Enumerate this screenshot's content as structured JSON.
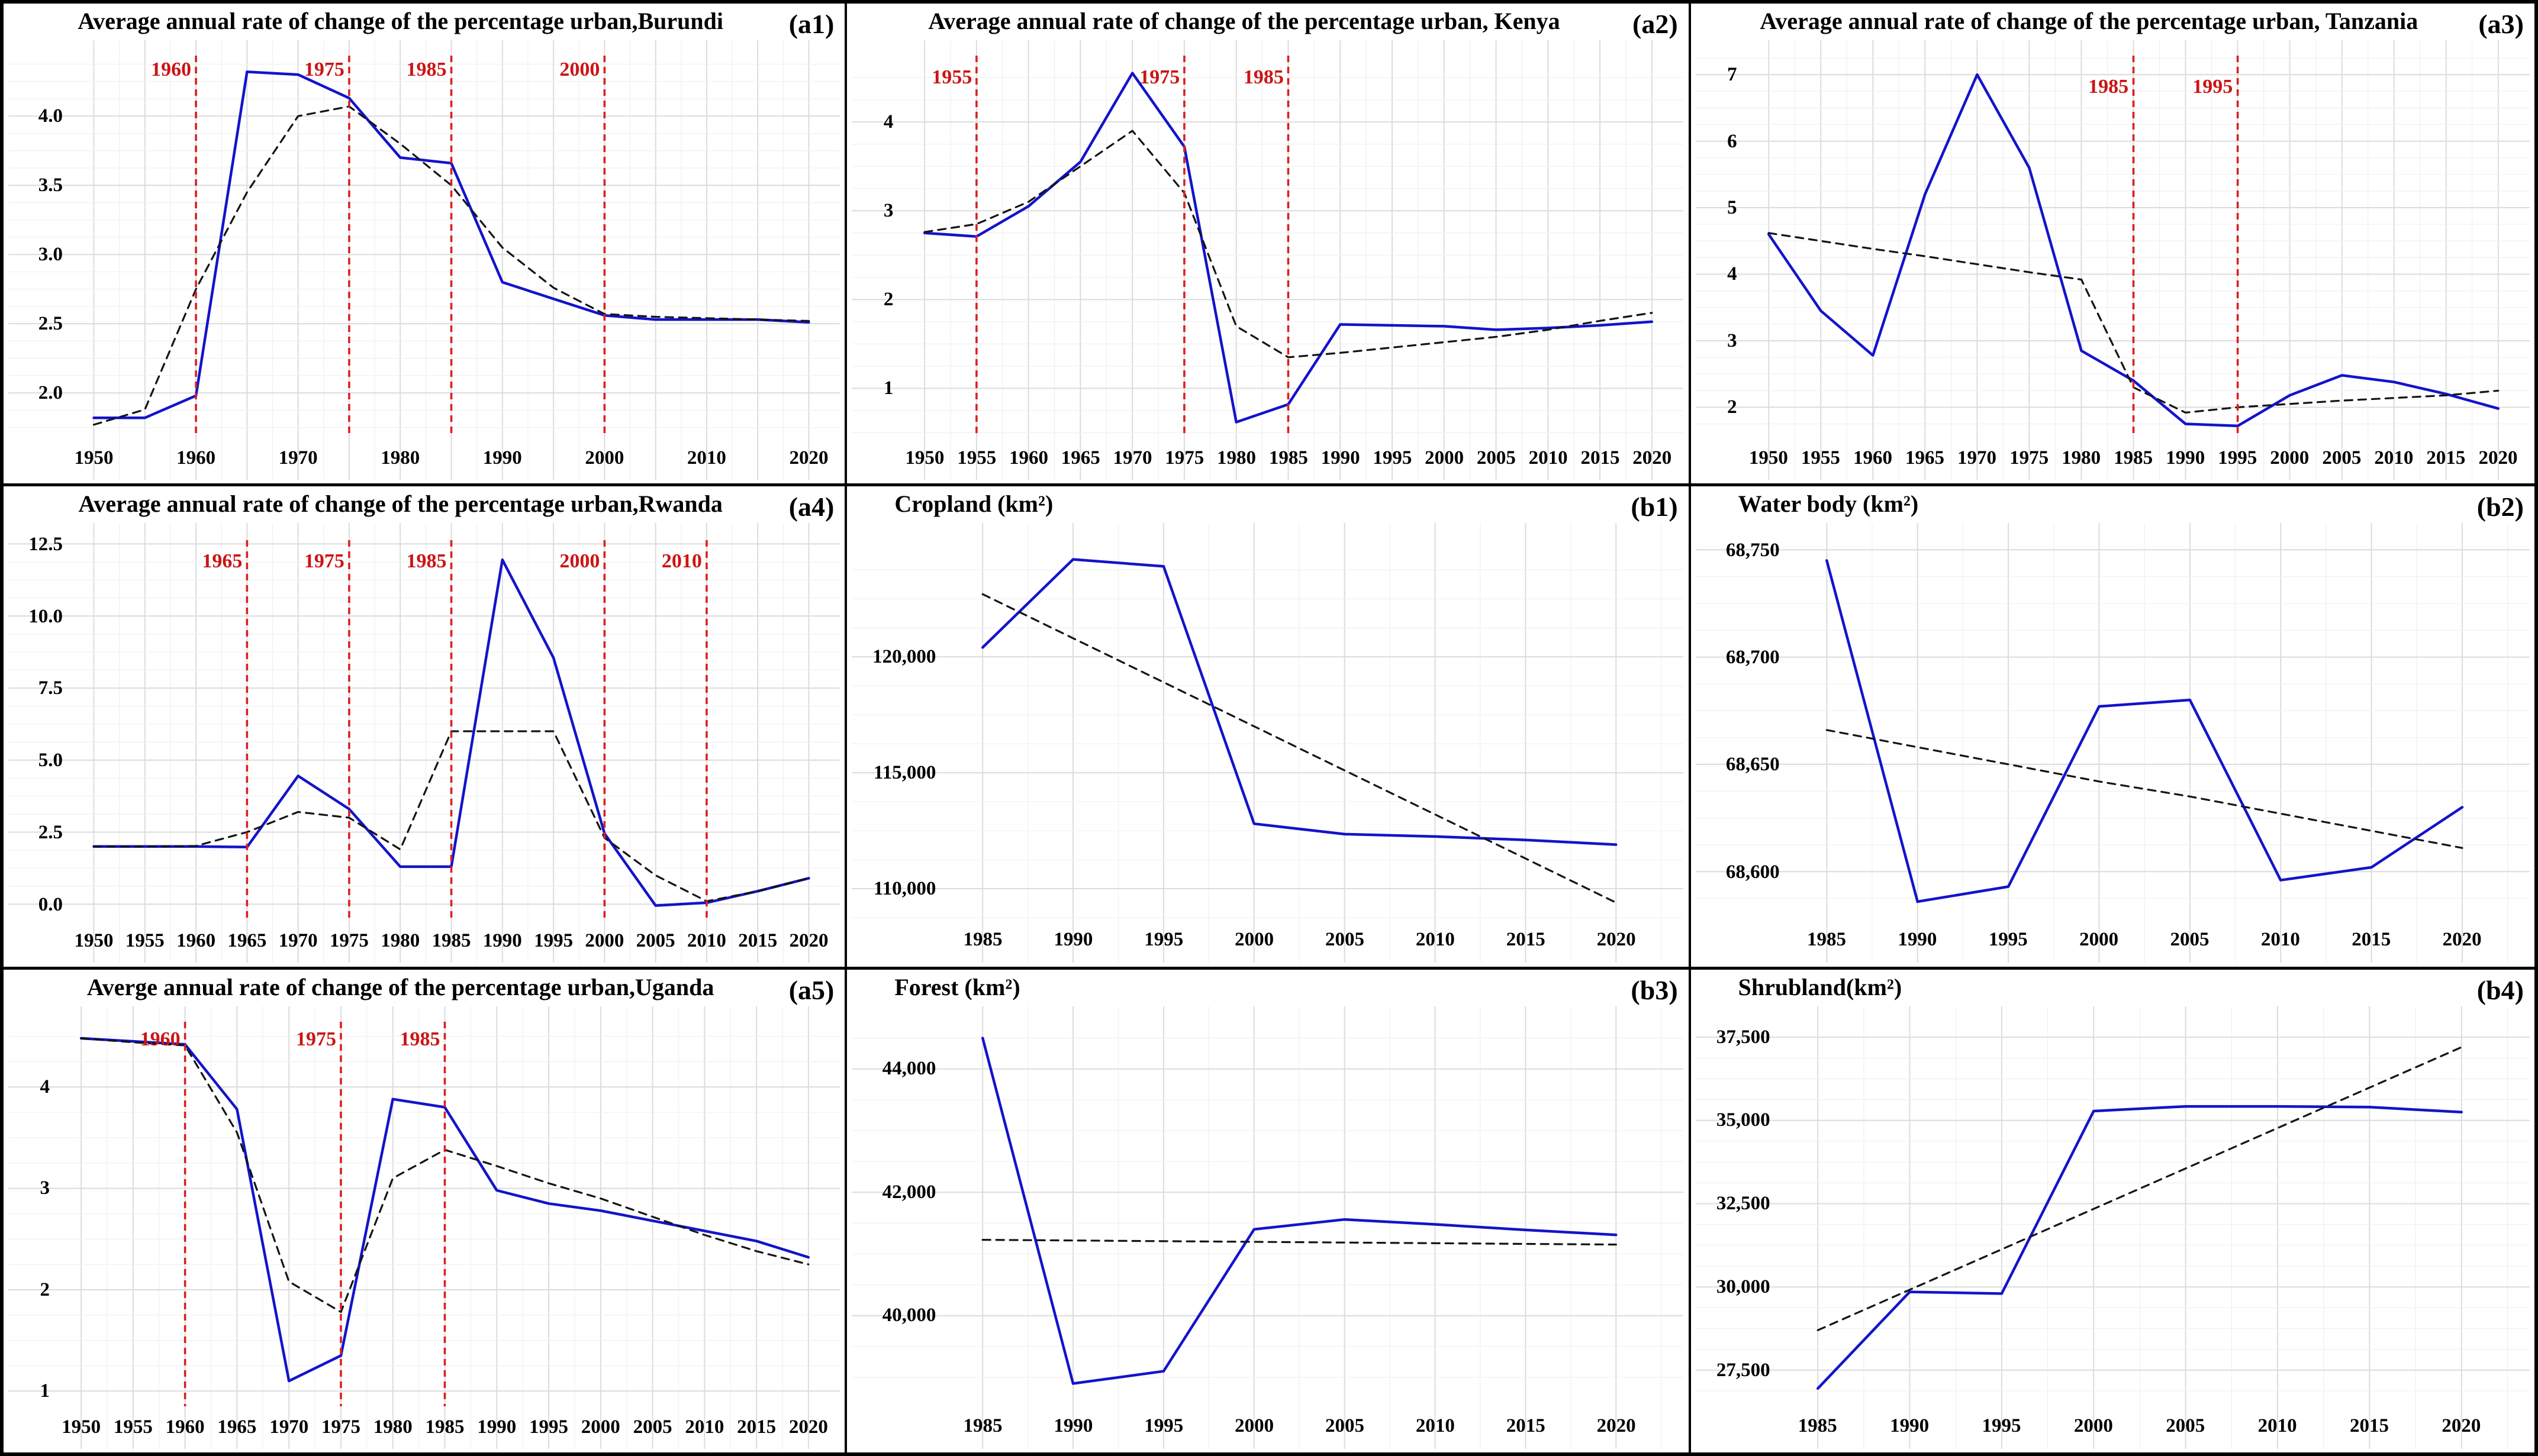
{
  "figure": {
    "colors": {
      "series_blue": "#1313cb",
      "trend_black": "#141414",
      "vline_red": "#d92020",
      "vline_label_red": "#cc1414",
      "grid_major": "#dcdcdc",
      "grid_minor": "#f0f0f0",
      "panel_border": "#000000",
      "background": "#ffffff",
      "text": "#000000"
    }
  },
  "chart_data": [
    {
      "id": "a1",
      "tag": "(a1)",
      "type": "line",
      "title_align": "center",
      "title": "Average annual rate of change of the percentage urban,Burundi",
      "x": [
        1950,
        1955,
        1960,
        1965,
        1970,
        1975,
        1980,
        1985,
        1990,
        1995,
        2000,
        2005,
        2010,
        2015,
        2020
      ],
      "xlim": [
        1948,
        2022
      ],
      "x_ticks": [
        1950,
        1960,
        1970,
        1980,
        1990,
        2000,
        2010,
        2020
      ],
      "x_tick_labels": [
        "1950",
        "1960",
        "1970",
        "1980",
        "1990",
        "2000",
        "2010",
        "2020"
      ],
      "y_ticks": [
        2.0,
        2.5,
        3.0,
        3.5,
        4.0
      ],
      "y_tick_labels": [
        "2.0",
        "2.5",
        "3.0",
        "3.5",
        "4.0"
      ],
      "ylim": [
        1.68,
        4.42
      ],
      "margins": {
        "l": 118,
        "r": 26,
        "t": 92,
        "b": 78
      },
      "series": [
        {
          "name": "observed",
          "style": "solid",
          "values": [
            1.82,
            1.82,
            1.98,
            4.32,
            4.3,
            4.13,
            3.7,
            3.66,
            2.8,
            2.68,
            2.56,
            2.53,
            2.53,
            2.53,
            2.51
          ]
        },
        {
          "name": "trend",
          "style": "dashed",
          "values": [
            1.77,
            1.88,
            2.75,
            3.45,
            4.0,
            4.07,
            3.8,
            3.5,
            3.05,
            2.76,
            2.57,
            2.55,
            2.54,
            2.53,
            2.52
          ]
        }
      ],
      "vlines": [
        {
          "x": 1960,
          "label": "1960"
        },
        {
          "x": 1975,
          "label": "1975"
        },
        {
          "x": 1985,
          "label": "1985"
        },
        {
          "x": 2000,
          "label": "2000"
        }
      ],
      "vline_label_frac": 0.03
    },
    {
      "id": "a2",
      "tag": "(a2)",
      "type": "line",
      "title_align": "center",
      "title": "Average annual rate of change of the percentage urban, Kenya",
      "x": [
        1950,
        1955,
        1960,
        1965,
        1970,
        1975,
        1980,
        1985,
        1990,
        1995,
        2000,
        2005,
        2010,
        2015,
        2020
      ],
      "xlim": [
        1948,
        2022
      ],
      "x_ticks": [
        1950,
        1955,
        1960,
        1965,
        1970,
        1975,
        1980,
        1985,
        1990,
        1995,
        2000,
        2005,
        2010,
        2015,
        2020
      ],
      "x_tick_labels": [
        "1950",
        "1955",
        "1960",
        "1965",
        "1970",
        "1975",
        "1980",
        "1985",
        "1990",
        "1995",
        "2000",
        "2005",
        "2010",
        "2015",
        "2020"
      ],
      "y_ticks": [
        1,
        2,
        3,
        4
      ],
      "y_tick_labels": [
        "1",
        "2",
        "3",
        "4"
      ],
      "ylim": [
        0.45,
        4.72
      ],
      "margins": {
        "l": 96,
        "r": 26,
        "t": 92,
        "b": 78
      },
      "series": [
        {
          "name": "observed",
          "style": "solid",
          "values": [
            2.75,
            2.71,
            3.05,
            3.55,
            4.55,
            3.72,
            0.62,
            0.82,
            1.72,
            1.71,
            1.7,
            1.66,
            1.68,
            1.71,
            1.75
          ]
        },
        {
          "name": "trend",
          "style": "dashed",
          "values": [
            2.76,
            2.85,
            3.1,
            3.5,
            3.9,
            3.2,
            1.7,
            1.35,
            1.4,
            1.46,
            1.52,
            1.58,
            1.66,
            1.76,
            1.85
          ]
        }
      ],
      "vlines": [
        {
          "x": 1955,
          "label": "1955"
        },
        {
          "x": 1975,
          "label": "1975"
        },
        {
          "x": 1985,
          "label": "1985"
        }
      ],
      "vline_label_frac": 0.05
    },
    {
      "id": "a3",
      "tag": "(a3)",
      "type": "line",
      "title_align": "center",
      "title": "Average annual rate of change of the percentage urban, Tanzania",
      "x": [
        1950,
        1955,
        1960,
        1965,
        1970,
        1975,
        1980,
        1985,
        1990,
        1995,
        2000,
        2005,
        2010,
        2015,
        2020
      ],
      "xlim": [
        1948,
        2022
      ],
      "x_ticks": [
        1950,
        1955,
        1960,
        1965,
        1970,
        1975,
        1980,
        1985,
        1990,
        1995,
        2000,
        2005,
        2010,
        2015,
        2020
      ],
      "x_tick_labels": [
        "1950",
        "1955",
        "1960",
        "1965",
        "1970",
        "1975",
        "1980",
        "1985",
        "1990",
        "1995",
        "2000",
        "2005",
        "2010",
        "2015",
        "2020"
      ],
      "y_ticks": [
        2,
        3,
        4,
        5,
        6,
        7
      ],
      "y_tick_labels": [
        "2",
        "3",
        "4",
        "5",
        "6",
        "7"
      ],
      "ylim": [
        1.55,
        7.25
      ],
      "margins": {
        "l": 96,
        "r": 26,
        "t": 92,
        "b": 78
      },
      "series": [
        {
          "name": "observed",
          "style": "solid",
          "values": [
            4.6,
            3.45,
            2.78,
            5.2,
            7.0,
            5.6,
            2.85,
            2.4,
            1.75,
            1.72,
            2.18,
            2.48,
            2.38,
            2.2,
            1.98
          ]
        },
        {
          "name": "trend",
          "style": "dashed",
          "values": [
            4.62,
            4.5,
            4.38,
            4.27,
            4.15,
            4.03,
            3.92,
            2.3,
            1.92,
            2.0,
            2.05,
            2.1,
            2.14,
            2.18,
            2.25
          ]
        }
      ],
      "vlines": [
        {
          "x": 1985,
          "label": "1985"
        },
        {
          "x": 1995,
          "label": "1995"
        }
      ],
      "vline_label_frac": 0.075
    },
    {
      "id": "a4",
      "tag": "(a4)",
      "type": "line",
      "title_align": "center",
      "title": "Average annual rate of change of the percentage urban,Rwanda",
      "x": [
        1950,
        1955,
        1960,
        1965,
        1970,
        1975,
        1980,
        1985,
        1990,
        1995,
        2000,
        2005,
        2010,
        2015,
        2020
      ],
      "xlim": [
        1948,
        2022
      ],
      "x_ticks": [
        1950,
        1955,
        1960,
        1965,
        1970,
        1975,
        1980,
        1985,
        1990,
        1995,
        2000,
        2005,
        2010,
        2015,
        2020
      ],
      "x_tick_labels": [
        "1950",
        "1955",
        "1960",
        "1965",
        "1970",
        "1975",
        "1980",
        "1985",
        "1990",
        "1995",
        "2000",
        "2005",
        "2010",
        "2015",
        "2020"
      ],
      "y_ticks": [
        0.0,
        2.5,
        5.0,
        7.5,
        10.0,
        12.5
      ],
      "y_tick_labels": [
        "0.0",
        "2.5",
        "5.0",
        "7.5",
        "10.0",
        "12.5"
      ],
      "ylim": [
        -0.55,
        12.55
      ],
      "margins": {
        "l": 118,
        "r": 26,
        "t": 95,
        "b": 78
      },
      "series": [
        {
          "name": "observed",
          "style": "solid",
          "values": [
            2.0,
            2.0,
            2.0,
            1.98,
            4.45,
            3.3,
            1.3,
            1.3,
            11.95,
            8.55,
            2.45,
            -0.05,
            0.05,
            0.45,
            0.9
          ]
        },
        {
          "name": "trend",
          "style": "dashed",
          "values": [
            2.0,
            2.0,
            2.02,
            2.5,
            3.2,
            3.0,
            1.9,
            6.0,
            6.0,
            6.0,
            2.3,
            1.0,
            0.1,
            0.45,
            0.9
          ]
        }
      ],
      "vlines": [
        {
          "x": 1965,
          "label": "1965"
        },
        {
          "x": 1975,
          "label": "1975"
        },
        {
          "x": 1985,
          "label": "1985"
        },
        {
          "x": 2000,
          "label": "2000"
        },
        {
          "x": 2010,
          "label": "2010"
        }
      ],
      "vline_label_frac": 0.048
    },
    {
      "id": "b1",
      "tag": "(b1)",
      "type": "line",
      "title_align": "left",
      "title": "Cropland (km²)",
      "x": [
        1985,
        1990,
        1995,
        2000,
        2005,
        2010,
        2015,
        2020
      ],
      "xlim": [
        1983,
        2023
      ],
      "x_ticks": [
        1985,
        1990,
        1995,
        2000,
        2005,
        2010,
        2015,
        2020
      ],
      "x_tick_labels": [
        "1985",
        "1990",
        "1995",
        "2000",
        "2005",
        "2010",
        "2015",
        "2020"
      ],
      "y_ticks": [
        110000,
        115000,
        120000
      ],
      "y_tick_labels": [
        "110,000",
        "115,000",
        "120,000"
      ],
      "ylim": [
        108700,
        124800
      ],
      "margins": {
        "l": 168,
        "r": 30,
        "t": 100,
        "b": 80
      },
      "series": [
        {
          "name": "observed",
          "style": "solid",
          "values": [
            120400,
            124200,
            123900,
            112800,
            112350,
            112250,
            112100,
            111900
          ]
        },
        {
          "name": "trend",
          "style": "dashed",
          "values": [
            122700,
            120800,
            118900,
            117000,
            115100,
            113200,
            111300,
            109400
          ]
        }
      ],
      "vlines": [],
      "vline_label_frac": 0.05
    },
    {
      "id": "b2",
      "tag": "(b2)",
      "type": "line",
      "title_align": "left",
      "title": "Water body (km²)",
      "x": [
        1985,
        1990,
        1995,
        2000,
        2005,
        2010,
        2015,
        2020
      ],
      "xlim": [
        1983,
        2023
      ],
      "x_ticks": [
        1985,
        1990,
        1995,
        2000,
        2005,
        2010,
        2015,
        2020
      ],
      "x_tick_labels": [
        "1985",
        "1990",
        "1995",
        "2000",
        "2005",
        "2010",
        "2015",
        "2020"
      ],
      "y_ticks": [
        68600,
        68650,
        68700,
        68750
      ],
      "y_tick_labels": [
        "68,600",
        "68,650",
        "68,700",
        "68,750"
      ],
      "ylim": [
        68578,
        68752
      ],
      "margins": {
        "l": 168,
        "r": 30,
        "t": 100,
        "b": 80
      },
      "series": [
        {
          "name": "observed",
          "style": "solid",
          "values": [
            68745,
            68586,
            68593,
            68677,
            68680,
            68596,
            68602,
            68630
          ]
        },
        {
          "name": "trend",
          "style": "dashed",
          "values": [
            68666,
            68658,
            68650,
            68642,
            68635,
            68627,
            68619,
            68611
          ]
        }
      ],
      "vlines": [],
      "vline_label_frac": 0.05
    },
    {
      "id": "a5",
      "tag": "(a5)",
      "type": "line",
      "title_align": "center",
      "title": "Averge annual rate of change of the percentage urban,Uganda",
      "x": [
        1950,
        1955,
        1960,
        1965,
        1970,
        1975,
        1980,
        1985,
        1990,
        1995,
        2000,
        2005,
        2010,
        2015,
        2020
      ],
      "xlim": [
        1948,
        2022
      ],
      "x_ticks": [
        1950,
        1955,
        1960,
        1965,
        1970,
        1975,
        1980,
        1985,
        1990,
        1995,
        2000,
        2005,
        2010,
        2015,
        2020
      ],
      "x_tick_labels": [
        "1950",
        "1955",
        "1960",
        "1965",
        "1970",
        "1975",
        "1980",
        "1985",
        "1990",
        "1995",
        "2000",
        "2005",
        "2010",
        "2015",
        "2020"
      ],
      "y_ticks": [
        1,
        2,
        3,
        4
      ],
      "y_tick_labels": [
        "1",
        "2",
        "3",
        "4"
      ],
      "ylim": [
        0.85,
        4.62
      ],
      "margins": {
        "l": 96,
        "r": 26,
        "t": 92,
        "b": 78
      },
      "series": [
        {
          "name": "observed",
          "style": "solid",
          "values": [
            4.48,
            4.45,
            4.42,
            3.78,
            1.1,
            1.35,
            3.88,
            3.8,
            2.98,
            2.85,
            2.78,
            2.68,
            2.58,
            2.48,
            2.32
          ]
        },
        {
          "name": "trend",
          "style": "dashed",
          "values": [
            4.48,
            4.44,
            4.41,
            3.55,
            2.08,
            1.78,
            3.1,
            3.38,
            3.22,
            3.05,
            2.9,
            2.72,
            2.54,
            2.38,
            2.25
          ]
        }
      ],
      "vlines": [
        {
          "x": 1960,
          "label": "1960"
        },
        {
          "x": 1975,
          "label": "1975"
        },
        {
          "x": 1985,
          "label": "1985"
        }
      ],
      "vline_label_frac": 0.04
    },
    {
      "id": "b3",
      "tag": "(b3)",
      "type": "line",
      "title_align": "left",
      "title": "Forest (km²)",
      "x": [
        1985,
        1990,
        1995,
        2000,
        2005,
        2010,
        2015,
        2020
      ],
      "xlim": [
        1983,
        2023
      ],
      "x_ticks": [
        1985,
        1990,
        1995,
        2000,
        2005,
        2010,
        2015,
        2020
      ],
      "x_tick_labels": [
        "1985",
        "1990",
        "1995",
        "2000",
        "2005",
        "2010",
        "2015",
        "2020"
      ],
      "y_ticks": [
        40000,
        42000,
        44000
      ],
      "y_tick_labels": [
        "40,000",
        "42,000",
        "44,000"
      ],
      "ylim": [
        38550,
        44650
      ],
      "margins": {
        "l": 168,
        "r": 30,
        "t": 100,
        "b": 80
      },
      "series": [
        {
          "name": "observed",
          "style": "solid",
          "values": [
            44500,
            38900,
            39100,
            41400,
            41560,
            41480,
            41390,
            41310
          ]
        },
        {
          "name": "trend",
          "style": "dashed",
          "values": [
            41230,
            41219,
            41208,
            41197,
            41186,
            41175,
            41164,
            41153
          ]
        }
      ],
      "vlines": [],
      "vline_label_frac": 0.05
    },
    {
      "id": "b4",
      "tag": "(b4)",
      "type": "line",
      "title_align": "left",
      "title": "Shrubland(km²)",
      "x": [
        1985,
        1990,
        1995,
        2000,
        2005,
        2010,
        2015,
        2020
      ],
      "xlim": [
        1983,
        2023
      ],
      "x_ticks": [
        1985,
        1990,
        1995,
        2000,
        2005,
        2010,
        2015,
        2020
      ],
      "x_tick_labels": [
        "1985",
        "1990",
        "1995",
        "2000",
        "2005",
        "2010",
        "2015",
        "2020"
      ],
      "y_ticks": [
        27500,
        30000,
        32500,
        35000,
        37500
      ],
      "y_tick_labels": [
        "27,500",
        "30,000",
        "32,500",
        "35,000",
        "37,500"
      ],
      "ylim": [
        26450,
        37750
      ],
      "margins": {
        "l": 152,
        "r": 30,
        "t": 100,
        "b": 80
      },
      "series": [
        {
          "name": "observed",
          "style": "solid",
          "values": [
            26950,
            29850,
            29800,
            35280,
            35420,
            35420,
            35400,
            35250
          ]
        },
        {
          "name": "trend",
          "style": "dashed",
          "values": [
            28700,
            29914,
            31129,
            32343,
            33557,
            34771,
            35986,
            37200
          ]
        }
      ],
      "vlines": [],
      "vline_label_frac": 0.05
    }
  ]
}
